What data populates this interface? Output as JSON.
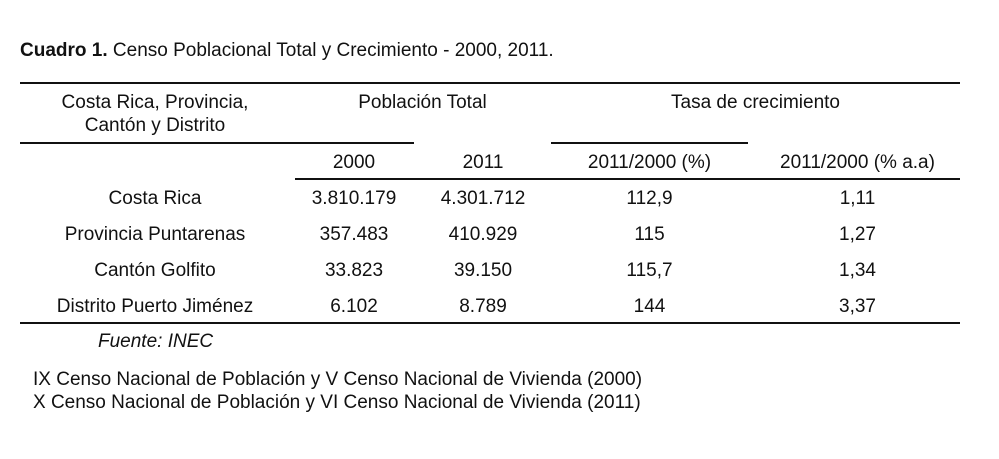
{
  "caption": {
    "label": "Cuadro 1.",
    "title": "Censo Poblacional Total y Crecimiento - 2000, 2011."
  },
  "table": {
    "header": {
      "place_line1": "Costa Rica, Provincia,",
      "place_line2": "Cantón y Distrito",
      "population": "Población Total",
      "growth": "Tasa de crecimiento",
      "sub": [
        "2000",
        "2011",
        "2011/2000 (%)",
        "2011/2000 (% a.a)"
      ]
    },
    "rows": [
      [
        "Costa Rica",
        "3.810.179",
        "4.301.712",
        "112,9",
        "1,11"
      ],
      [
        "Provincia Puntarenas",
        "357.483",
        "410.929",
        "115",
        "1,27"
      ],
      [
        "Cantón Golfito",
        "33.823",
        "39.150",
        "115,7",
        "1,34"
      ],
      [
        "Distrito Puerto Jiménez",
        "6.102",
        "8.789",
        "144",
        "3,37"
      ]
    ]
  },
  "source": "Fuente: INEC",
  "notes": [
    "IX Censo Nacional de Población y V Censo Nacional de Vivienda (2000)",
    "X Censo Nacional de Población y VI Censo Nacional de Vivienda (2011)"
  ]
}
